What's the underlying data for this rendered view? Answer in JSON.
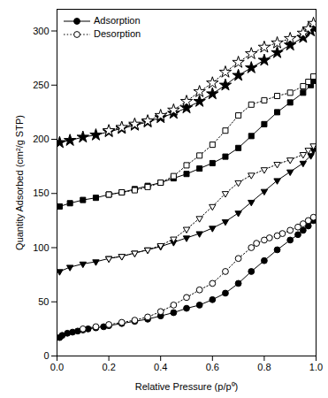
{
  "chart_data": {
    "type": "line",
    "x_label": "Relative Pressure (p/p⁰)",
    "y_label": "Quantity Adsorbed (cm²/g STP)",
    "xlim": [
      0,
      1
    ],
    "ylim": [
      0,
      320
    ],
    "xticks": [
      {
        "value": 0,
        "label": "0.0"
      },
      {
        "value": 0.2,
        "label": "0.2"
      },
      {
        "value": 0.4,
        "label": "0.4"
      },
      {
        "value": 0.6,
        "label": "0.6"
      },
      {
        "value": 0.8,
        "label": "0.8"
      },
      {
        "value": 1,
        "label": "1.0"
      }
    ],
    "yticks": [
      0,
      50,
      100,
      150,
      200,
      250,
      300
    ],
    "grid": false,
    "legend": "top-left",
    "series": [
      {
        "name": "Adsorption",
        "color": "#000000",
        "marker": "filled-circle",
        "line_style": "solid",
        "x": [
          0.01,
          0.02,
          0.04,
          0.06,
          0.08,
          0.1,
          0.12,
          0.15,
          0.18,
          0.2,
          0.25,
          0.3,
          0.35,
          0.4,
          0.45,
          0.5,
          0.55,
          0.6,
          0.65,
          0.7,
          0.75,
          0.8,
          0.85,
          0.9,
          0.93,
          0.95,
          0.97,
          0.99
        ],
        "values": [
          17,
          19,
          21,
          22,
          23,
          24,
          25,
          26,
          27,
          28,
          30,
          32,
          34,
          37,
          40,
          44,
          47,
          52,
          58,
          67,
          78,
          88,
          98,
          107,
          112,
          116,
          120,
          125
        ]
      },
      {
        "name": "Desorption",
        "color": "#000000",
        "marker": "open-circle",
        "line_style": "dotted",
        "x": [
          0.99,
          0.97,
          0.95,
          0.93,
          0.9,
          0.87,
          0.85,
          0.82,
          0.8,
          0.77,
          0.75,
          0.7,
          0.65,
          0.6,
          0.55,
          0.5,
          0.45,
          0.4,
          0.35,
          0.3,
          0.25,
          0.2,
          0.15,
          0.1
        ],
        "values": [
          128,
          125,
          122,
          119,
          116,
          113,
          111,
          109,
          107,
          104,
          100,
          90,
          78,
          67,
          61,
          54,
          47,
          41,
          36,
          33,
          31,
          29,
          27,
          25
        ]
      },
      {
        "name": "Adsorption",
        "color": "#000000",
        "marker": "filled-triangle-down",
        "line_style": "solid",
        "x": [
          0.01,
          0.05,
          0.1,
          0.15,
          0.2,
          0.25,
          0.3,
          0.35,
          0.4,
          0.45,
          0.5,
          0.55,
          0.6,
          0.65,
          0.7,
          0.75,
          0.8,
          0.85,
          0.9,
          0.95,
          0.98,
          0.99
        ],
        "values": [
          78,
          82,
          85,
          87,
          90,
          92,
          95,
          98,
          101,
          105,
          109,
          113,
          118,
          124,
          132,
          142,
          152,
          162,
          170,
          178,
          185,
          190
        ]
      },
      {
        "name": "Desorption",
        "color": "#000000",
        "marker": "open-triangle-down",
        "line_style": "dotted",
        "x": [
          0.99,
          0.97,
          0.95,
          0.9,
          0.85,
          0.8,
          0.75,
          0.7,
          0.65,
          0.6,
          0.55,
          0.5,
          0.45,
          0.4,
          0.35,
          0.3,
          0.25,
          0.2
        ],
        "values": [
          194,
          190,
          186,
          181,
          177,
          172,
          167,
          160,
          150,
          138,
          127,
          117,
          108,
          102,
          98,
          95,
          92,
          90
        ]
      },
      {
        "name": "Adsorption",
        "color": "#000000",
        "marker": "filled-square",
        "line_style": "solid",
        "x": [
          0.01,
          0.05,
          0.1,
          0.15,
          0.2,
          0.25,
          0.3,
          0.35,
          0.4,
          0.45,
          0.5,
          0.55,
          0.6,
          0.65,
          0.7,
          0.75,
          0.8,
          0.85,
          0.9,
          0.95,
          0.98,
          0.99
        ],
        "values": [
          138,
          141,
          144,
          146,
          149,
          151,
          154,
          157,
          160,
          164,
          168,
          173,
          178,
          184,
          192,
          203,
          214,
          225,
          234,
          243,
          250,
          254
        ]
      },
      {
        "name": "Desorption",
        "color": "#000000",
        "marker": "open-square",
        "line_style": "dotted",
        "x": [
          0.99,
          0.97,
          0.95,
          0.9,
          0.85,
          0.8,
          0.75,
          0.7,
          0.65,
          0.6,
          0.55,
          0.5,
          0.45,
          0.4,
          0.35,
          0.3,
          0.25,
          0.2
        ],
        "values": [
          258,
          253,
          249,
          243,
          240,
          236,
          232,
          222,
          208,
          195,
          185,
          176,
          166,
          160,
          156,
          153,
          151,
          149
        ]
      },
      {
        "name": "Adsorption",
        "color": "#000000",
        "marker": "filled-star",
        "line_style": "solid",
        "x": [
          0.01,
          0.05,
          0.1,
          0.15,
          0.2,
          0.25,
          0.3,
          0.35,
          0.4,
          0.45,
          0.5,
          0.55,
          0.6,
          0.65,
          0.7,
          0.75,
          0.8,
          0.85,
          0.9,
          0.95,
          0.98,
          0.99
        ],
        "values": [
          197,
          199,
          202,
          204,
          207,
          210,
          213,
          216,
          220,
          224,
          229,
          235,
          242,
          250,
          259,
          266,
          273,
          280,
          287,
          294,
          300,
          303
        ]
      },
      {
        "name": "Desorption",
        "color": "#000000",
        "marker": "open-star",
        "line_style": "dotted",
        "x": [
          0.99,
          0.97,
          0.95,
          0.9,
          0.85,
          0.8,
          0.75,
          0.7,
          0.65,
          0.6,
          0.55,
          0.5,
          0.45,
          0.4,
          0.35,
          0.3,
          0.25,
          0.2
        ],
        "values": [
          307,
          302,
          298,
          293,
          289,
          285,
          279,
          271,
          262,
          252,
          244,
          235,
          227,
          222,
          217,
          214,
          211,
          208
        ]
      }
    ]
  }
}
